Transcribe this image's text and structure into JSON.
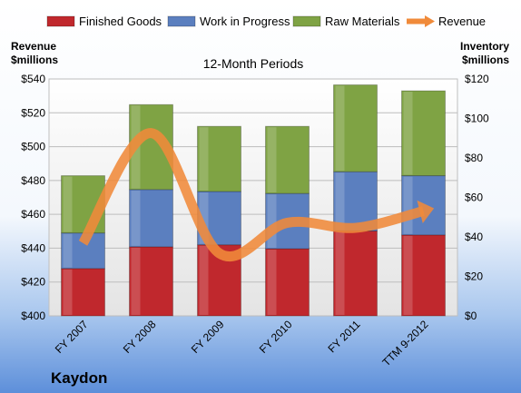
{
  "chart_data": {
    "type": "bar",
    "stacked": true,
    "subtitle": "12-Month Periods",
    "company": "Kaydon",
    "categories": [
      "FY 2007",
      "FY 2008",
      "FY 2009",
      "FY 2010",
      "FY 2011",
      "TTM 9-2012"
    ],
    "y_left": {
      "label_line1": "Revenue",
      "label_line2": "$millions",
      "min": 400,
      "max": 540,
      "step": 20,
      "tick_prefix": "$"
    },
    "y_right": {
      "label_line1": "Inventory",
      "label_line2": "$millions",
      "min": 0,
      "max": 120,
      "step": 20,
      "tick_prefix": "$"
    },
    "series": [
      {
        "name": "Finished Goods",
        "type": "bar",
        "axis": "right",
        "color": "#c0282d",
        "values": [
          24,
          35,
          36,
          34,
          43,
          41
        ]
      },
      {
        "name": "Work in Progress",
        "type": "bar",
        "axis": "right",
        "color": "#5b7fbf",
        "values": [
          18,
          29,
          27,
          28,
          30,
          30
        ]
      },
      {
        "name": "Raw Materials",
        "type": "bar",
        "axis": "right",
        "color": "#7fa344",
        "values": [
          29,
          43,
          33,
          34,
          44,
          43
        ]
      },
      {
        "name": "Revenue",
        "type": "line",
        "axis": "left",
        "color": "#f08a3a",
        "values": [
          443,
          508,
          437,
          455,
          452,
          462
        ]
      }
    ],
    "legend_position": "top",
    "grid": true
  }
}
